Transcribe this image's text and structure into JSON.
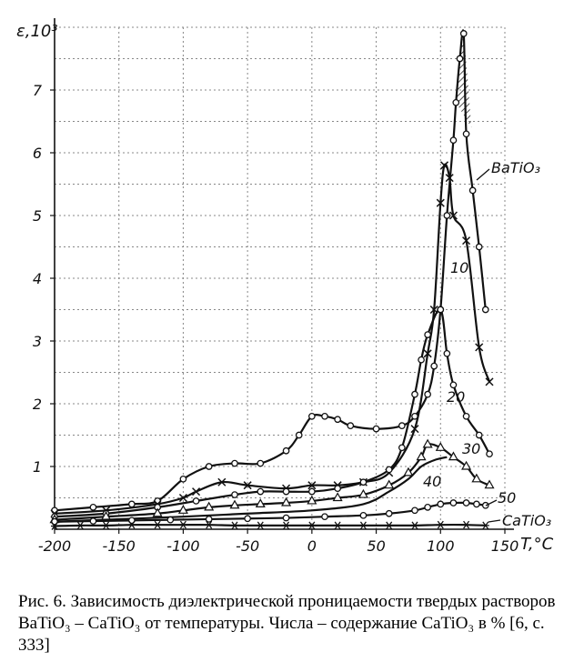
{
  "chart_data": {
    "type": "line",
    "ylabel": "ε,10³",
    "xlabel": "T,°C",
    "xlim": [
      -200,
      150
    ],
    "ylim": [
      0,
      8
    ],
    "x_ticks": [
      -200,
      -150,
      -100,
      -50,
      0,
      50,
      100,
      150
    ],
    "x_tick_labels": [
      "-200",
      "-150",
      "-100",
      "-50",
      "0",
      "50",
      "100",
      "150"
    ],
    "y_ticks": [
      1,
      2,
      3,
      4,
      5,
      6,
      7
    ],
    "y_tick_labels": [
      "1",
      "2",
      "3",
      "4",
      "5",
      "6",
      "7"
    ],
    "grid": true,
    "series": [
      {
        "name": "BaTiO₃",
        "label": "BaTiO₃",
        "marker": "circle",
        "x": [
          -200,
          -170,
          -140,
          -120,
          -100,
          -80,
          -60,
          -40,
          -20,
          -10,
          0,
          10,
          20,
          30,
          50,
          70,
          80,
          90,
          95,
          100,
          105,
          110,
          112,
          115,
          118,
          120,
          125,
          130,
          135
        ],
        "y": [
          0.3,
          0.35,
          0.4,
          0.45,
          0.8,
          1.0,
          1.05,
          1.05,
          1.25,
          1.5,
          1.8,
          1.8,
          1.75,
          1.65,
          1.6,
          1.65,
          1.8,
          2.15,
          2.6,
          3.5,
          5.0,
          6.2,
          6.8,
          7.5,
          7.9,
          6.3,
          5.4,
          4.5,
          3.5
        ],
        "color": "#111111"
      },
      {
        "name": "10",
        "label": "10",
        "marker": "cross",
        "x": [
          -200,
          -160,
          -120,
          -100,
          -90,
          -70,
          -50,
          -20,
          0,
          20,
          40,
          60,
          80,
          90,
          95,
          100,
          103,
          107,
          110,
          120,
          130,
          138
        ],
        "y": [
          0.25,
          0.3,
          0.4,
          0.5,
          0.6,
          0.75,
          0.7,
          0.65,
          0.7,
          0.7,
          0.75,
          0.9,
          1.6,
          2.8,
          3.5,
          5.2,
          5.8,
          5.6,
          5.0,
          4.6,
          2.9,
          2.35
        ],
        "color": "#111111"
      },
      {
        "name": "20",
        "label": "20",
        "marker": "circle",
        "x": [
          -200,
          -160,
          -120,
          -90,
          -60,
          -40,
          -20,
          0,
          20,
          40,
          60,
          70,
          80,
          85,
          90,
          100,
          105,
          110,
          120,
          130,
          138
        ],
        "y": [
          0.2,
          0.25,
          0.35,
          0.45,
          0.55,
          0.6,
          0.6,
          0.6,
          0.65,
          0.75,
          0.95,
          1.3,
          2.15,
          2.7,
          3.1,
          3.5,
          2.8,
          2.3,
          1.8,
          1.5,
          1.2
        ],
        "color": "#111111"
      },
      {
        "name": "30",
        "label": "30",
        "marker": "triangle",
        "x": [
          -200,
          -160,
          -120,
          -100,
          -80,
          -60,
          -40,
          -20,
          0,
          20,
          40,
          60,
          75,
          85,
          90,
          100,
          110,
          120,
          128,
          138
        ],
        "y": [
          0.15,
          0.2,
          0.25,
          0.3,
          0.35,
          0.38,
          0.4,
          0.42,
          0.45,
          0.5,
          0.55,
          0.7,
          0.9,
          1.15,
          1.35,
          1.3,
          1.15,
          1.0,
          0.8,
          0.7
        ],
        "color": "#111111"
      },
      {
        "name": "40",
        "label": "40",
        "marker": "none",
        "x": [
          -200,
          -150,
          -100,
          -50,
          0,
          40,
          60,
          75,
          85,
          95,
          105
        ],
        "y": [
          0.12,
          0.16,
          0.2,
          0.25,
          0.3,
          0.4,
          0.6,
          0.8,
          1.0,
          1.1,
          1.15
        ],
        "color": "#111111"
      },
      {
        "name": "50",
        "label": "50",
        "marker": "circle",
        "x": [
          -200,
          -170,
          -140,
          -110,
          -80,
          -50,
          -20,
          10,
          40,
          60,
          80,
          90,
          100,
          110,
          120,
          128,
          135
        ],
        "y": [
          0.12,
          0.13,
          0.14,
          0.15,
          0.16,
          0.17,
          0.18,
          0.2,
          0.22,
          0.25,
          0.3,
          0.35,
          0.4,
          0.42,
          0.42,
          0.4,
          0.38
        ],
        "color": "#111111"
      },
      {
        "name": "CaTiO₃",
        "label": "CaTiO₃",
        "marker": "star",
        "x": [
          -200,
          -180,
          -160,
          -140,
          -120,
          -100,
          -80,
          -60,
          -40,
          -20,
          0,
          20,
          40,
          60,
          80,
          100,
          120,
          135
        ],
        "y": [
          0.05,
          0.06,
          0.06,
          0.07,
          0.07,
          0.07,
          0.07,
          0.06,
          0.06,
          0.06,
          0.06,
          0.06,
          0.06,
          0.06,
          0.06,
          0.07,
          0.07,
          0.06
        ],
        "color": "#111111"
      }
    ],
    "annotations": [
      "hatched peak region of BaTiO₃ curve"
    ]
  },
  "caption": {
    "text": "Рис. 6. Зависимость диэлектрической проницаемости твердых растворов BaTiO₃ – CaTiO₃  от температуры. Числа – содержание CaTiO₃ в % [6, с. 333]"
  }
}
